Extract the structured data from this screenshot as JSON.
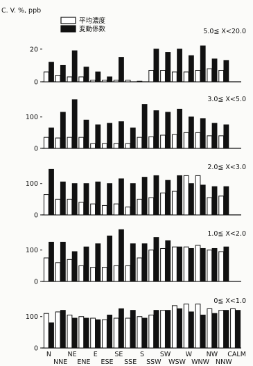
{
  "chart_data": {
    "type": "bar",
    "title": "",
    "ylabel": "C. V. %, ppb",
    "legend": {
      "placement": "top-center",
      "entries": [
        "平均濃度",
        "変動係数"
      ]
    },
    "series_names": [
      "平均濃度",
      "変動係数"
    ],
    "categories": [
      "N",
      "NNE",
      "NE",
      "ENE",
      "E",
      "ESE",
      "SE",
      "SSE",
      "S",
      "SSW",
      "SW",
      "WSW",
      "W",
      "WNW",
      "NW",
      "NNW",
      "CALM"
    ],
    "x_labels_top": [
      "N",
      "NE",
      "E",
      "SE",
      "S",
      "SW",
      "W",
      "NW",
      "CALM"
    ],
    "x_labels_bottom": [
      "NNE",
      "ENE",
      "ESE",
      "SSE",
      "SSW",
      "WSW",
      "WNW",
      "NNW"
    ],
    "ylim": [
      0,
      200
    ],
    "yticks": [
      0,
      100,
      200
    ],
    "panels": [
      {
        "label": "5.0≦ X<20.0",
        "yticks": [
          0,
          20
        ],
        "ylim": [
          0,
          28
        ],
        "series": [
          {
            "name": "平均濃度",
            "values": [
              6,
              4,
              3,
              3,
              1,
              1,
              1,
              1,
              0,
              7,
              7,
              6,
              6,
              7,
              8,
              7,
              null
            ]
          },
          {
            "name": "変動係数",
            "values": [
              12,
              10,
              19,
              9,
              6,
              3,
              15,
              null,
              null,
              20,
              18,
              20,
              16,
              22,
              14,
              13,
              null
            ]
          }
        ]
      },
      {
        "label": "3.0≦ X<5.0",
        "yticks": [
          0,
          100
        ],
        "ylim": [
          0,
          190
        ],
        "series": [
          {
            "name": "平均濃度",
            "values": [
              35,
              33,
              35,
              35,
              15,
              15,
              15,
              15,
              35,
              37,
              42,
              44,
              50,
              50,
              40,
              40,
              null
            ]
          },
          {
            "name": "変動係数",
            "values": [
              65,
              115,
              155,
              90,
              75,
              80,
              85,
              65,
              140,
              120,
              115,
              125,
              100,
              95,
              80,
              75,
              null
            ]
          }
        ]
      },
      {
        "label": "2.0≦ X<3.0",
        "yticks": [
          0,
          100
        ],
        "ylim": [
          0,
          190
        ],
        "series": [
          {
            "name": "平均濃度",
            "values": [
              65,
              50,
              50,
              40,
              35,
              30,
              35,
              25,
              50,
              55,
              70,
              75,
              125,
              125,
              55,
              60,
              null
            ]
          },
          {
            "name": "変動係数",
            "values": [
              145,
              105,
              100,
              100,
              105,
              100,
              115,
              100,
              120,
              125,
              110,
              125,
              100,
              95,
              90,
              90,
              null
            ]
          }
        ]
      },
      {
        "label": "1.0≦ X<2.0",
        "yticks": [
          0,
          100
        ],
        "ylim": [
          0,
          190
        ],
        "series": [
          {
            "name": "平均濃度",
            "values": [
              75,
              60,
              70,
              50,
              45,
              45,
              50,
              50,
              75,
              100,
              105,
              110,
              110,
              115,
              100,
              95,
              null
            ]
          },
          {
            "name": "変動係数",
            "values": [
              125,
              125,
              95,
              110,
              120,
              145,
              165,
              120,
              120,
              140,
              130,
              110,
              105,
              105,
              105,
              110,
              null
            ]
          }
        ]
      },
      {
        "label": "0≦ X<1.0",
        "yticks": [
          0,
          100
        ],
        "ylim": [
          0,
          190
        ],
        "series": [
          {
            "name": "平均濃度",
            "values": [
              110,
              115,
              105,
              100,
              95,
              90,
              95,
              95,
              100,
              105,
              120,
              135,
              140,
              140,
              125,
              120,
              125
            ]
          },
          {
            "name": "変動係数",
            "values": [
              80,
              120,
              95,
              95,
              90,
              105,
              125,
              120,
              95,
              120,
              120,
              125,
              115,
              105,
              110,
              120,
              120
            ]
          }
        ]
      }
    ]
  }
}
